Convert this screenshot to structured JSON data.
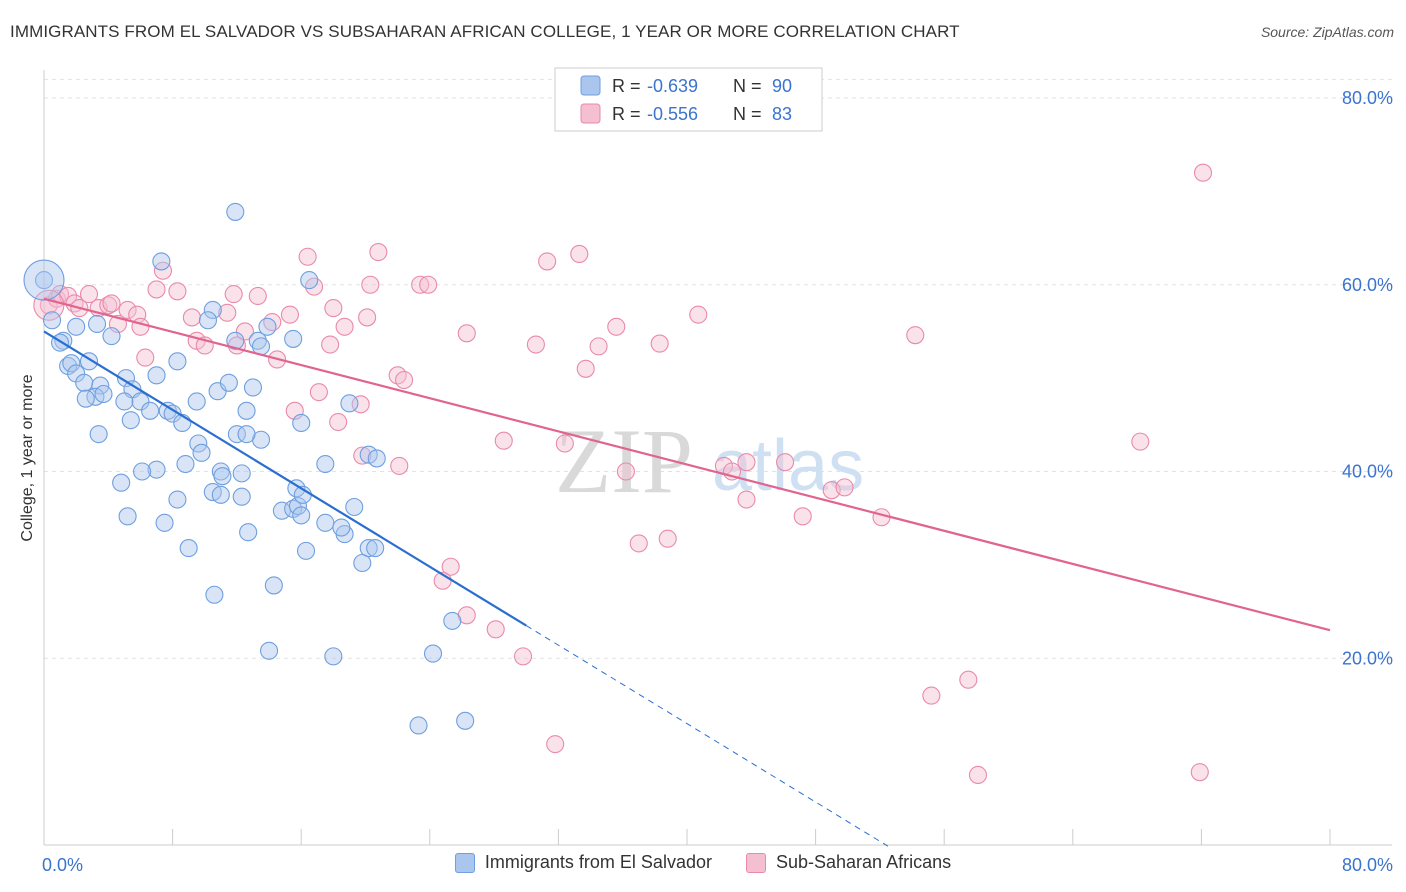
{
  "title": "IMMIGRANTS FROM EL SALVADOR VS SUBSAHARAN AFRICAN COLLEGE, 1 YEAR OR MORE CORRELATION CHART",
  "source": "Source: ZipAtlas.com",
  "watermark": {
    "zip": "ZIP",
    "atlas": "atlas"
  },
  "colors": {
    "blue": "#2a6fcf",
    "blue_fill": "#aac6ee",
    "pink": "#e0648e",
    "pink_fill": "#f5bfd2",
    "value_text": "#3a74cf"
  },
  "stats_legend": [
    {
      "r_label": "R = ",
      "r_value": "-0.639",
      "n_label": "N = ",
      "n_value": "90"
    },
    {
      "r_label": "R = ",
      "r_value": "-0.556",
      "n_label": "N = ",
      "n_value": "83"
    }
  ],
  "chart_data": {
    "type": "scatter",
    "title": "IMMIGRANTS FROM EL SALVADOR VS SUBSAHARAN AFRICAN COLLEGE, 1 YEAR OR MORE CORRELATION CHART",
    "xlabel": "",
    "ylabel": "College, 1 year or more",
    "xlim": [
      0,
      80
    ],
    "ylim": [
      0,
      83
    ],
    "x_tick_labels": [
      {
        "value": 0,
        "label": "0.0%"
      },
      {
        "value": 80,
        "label": "80.0%"
      }
    ],
    "y_tick_labels": [
      {
        "value": 20,
        "label": "20.0%"
      },
      {
        "value": 40,
        "label": "40.0%"
      },
      {
        "value": 60,
        "label": "60.0%"
      },
      {
        "value": 80,
        "label": "80.0%"
      }
    ],
    "grid": true,
    "legend_position": "top-center",
    "series": [
      {
        "name": "Immigrants from El Salvador",
        "color": "#2a6fcf",
        "trend": {
          "x": [
            0,
            30
          ],
          "y": [
            55,
            23.5
          ],
          "dashed_to_x": 52.5
        },
        "points": [
          [
            0.0,
            60.5
          ],
          [
            0.5,
            56.2
          ],
          [
            1.2,
            54.0
          ],
          [
            1.0,
            53.8
          ],
          [
            2.0,
            55.5
          ],
          [
            1.5,
            51.3
          ],
          [
            1.7,
            51.6
          ],
          [
            3.3,
            55.8
          ],
          [
            4.2,
            54.5
          ],
          [
            2.0,
            50.5
          ],
          [
            2.8,
            51.8
          ],
          [
            2.5,
            49.5
          ],
          [
            3.5,
            49.2
          ],
          [
            3.2,
            48.0
          ],
          [
            3.7,
            48.3
          ],
          [
            2.6,
            47.8
          ],
          [
            5.1,
            50.0
          ],
          [
            5.5,
            48.8
          ],
          [
            6.0,
            47.5
          ],
          [
            5.0,
            47.5
          ],
          [
            7.0,
            50.3
          ],
          [
            8.3,
            51.8
          ],
          [
            6.6,
            46.5
          ],
          [
            7.7,
            46.5
          ],
          [
            8.0,
            46.2
          ],
          [
            8.6,
            45.2
          ],
          [
            9.5,
            47.5
          ],
          [
            5.4,
            45.5
          ],
          [
            3.4,
            44.0
          ],
          [
            9.6,
            43.0
          ],
          [
            9.8,
            42.0
          ],
          [
            8.8,
            40.8
          ],
          [
            7.0,
            40.2
          ],
          [
            6.1,
            40.0
          ],
          [
            11.0,
            40.0
          ],
          [
            11.1,
            39.5
          ],
          [
            12.3,
            39.8
          ],
          [
            4.8,
            38.8
          ],
          [
            10.5,
            37.8
          ],
          [
            11.0,
            37.5
          ],
          [
            12.3,
            37.3
          ],
          [
            8.3,
            37.0
          ],
          [
            5.2,
            35.2
          ],
          [
            7.5,
            34.5
          ],
          [
            12.7,
            33.5
          ],
          [
            9.0,
            31.8
          ],
          [
            10.6,
            26.8
          ],
          [
            14.3,
            27.8
          ],
          [
            16.3,
            31.5
          ],
          [
            14.8,
            35.8
          ],
          [
            15.5,
            36.0
          ],
          [
            15.8,
            36.3
          ],
          [
            16.0,
            35.3
          ],
          [
            17.5,
            34.5
          ],
          [
            18.7,
            33.3
          ],
          [
            19.8,
            30.2
          ],
          [
            19.3,
            36.2
          ],
          [
            20.2,
            31.8
          ],
          [
            20.6,
            31.8
          ],
          [
            18.5,
            34.0
          ],
          [
            15.7,
            38.2
          ],
          [
            17.5,
            40.8
          ],
          [
            13.5,
            43.4
          ],
          [
            12.0,
            44.0
          ],
          [
            12.6,
            44.0
          ],
          [
            12.6,
            46.5
          ],
          [
            10.8,
            48.6
          ],
          [
            11.5,
            49.5
          ],
          [
            13.0,
            49.0
          ],
          [
            16.0,
            45.2
          ],
          [
            19.0,
            47.3
          ],
          [
            20.2,
            41.8
          ],
          [
            20.7,
            41.4
          ],
          [
            13.3,
            54.0
          ],
          [
            13.5,
            53.4
          ],
          [
            13.9,
            55.5
          ],
          [
            15.5,
            54.2
          ],
          [
            16.5,
            60.5
          ],
          [
            11.9,
            54.0
          ],
          [
            10.5,
            57.3
          ],
          [
            10.2,
            56.2
          ],
          [
            7.3,
            62.5
          ],
          [
            11.9,
            67.8
          ],
          [
            18.0,
            20.2
          ],
          [
            24.2,
            20.5
          ],
          [
            23.3,
            12.8
          ],
          [
            26.2,
            13.3
          ],
          [
            25.4,
            24.0
          ],
          [
            14.0,
            20.8
          ],
          [
            16.1,
            37.5
          ]
        ]
      },
      {
        "name": "Sub-Saharan Africans",
        "color": "#e0648e",
        "trend": {
          "x": [
            0,
            80
          ],
          "y": [
            58.5,
            23.0
          ]
        },
        "points": [
          [
            0.3,
            57.8
          ],
          [
            0.8,
            58.5
          ],
          [
            1.0,
            59.0
          ],
          [
            1.5,
            58.8
          ],
          [
            1.9,
            58.0
          ],
          [
            2.2,
            57.5
          ],
          [
            2.8,
            59.0
          ],
          [
            3.4,
            57.5
          ],
          [
            4.0,
            57.8
          ],
          [
            4.2,
            58.0
          ],
          [
            5.2,
            57.3
          ],
          [
            5.8,
            56.8
          ],
          [
            6.0,
            55.5
          ],
          [
            4.6,
            55.8
          ],
          [
            6.3,
            52.2
          ],
          [
            7.0,
            59.5
          ],
          [
            7.4,
            61.5
          ],
          [
            8.3,
            59.3
          ],
          [
            9.2,
            56.5
          ],
          [
            9.5,
            54.0
          ],
          [
            10.0,
            53.5
          ],
          [
            11.4,
            57.0
          ],
          [
            11.8,
            59.0
          ],
          [
            12.0,
            53.5
          ],
          [
            12.5,
            55.0
          ],
          [
            13.3,
            58.8
          ],
          [
            14.2,
            56.0
          ],
          [
            14.5,
            52.0
          ],
          [
            15.3,
            56.8
          ],
          [
            16.4,
            63.0
          ],
          [
            16.8,
            59.8
          ],
          [
            17.1,
            48.5
          ],
          [
            15.6,
            46.5
          ],
          [
            17.8,
            53.6
          ],
          [
            18.0,
            57.5
          ],
          [
            18.7,
            55.5
          ],
          [
            19.7,
            47.2
          ],
          [
            20.1,
            56.5
          ],
          [
            20.3,
            60.0
          ],
          [
            20.8,
            63.5
          ],
          [
            22.0,
            50.3
          ],
          [
            22.4,
            49.8
          ],
          [
            23.4,
            60.0
          ],
          [
            23.9,
            60.0
          ],
          [
            26.3,
            54.8
          ],
          [
            28.6,
            43.3
          ],
          [
            30.6,
            53.6
          ],
          [
            31.3,
            62.5
          ],
          [
            32.4,
            43.0
          ],
          [
            33.3,
            63.3
          ],
          [
            33.7,
            51.0
          ],
          [
            34.5,
            53.4
          ],
          [
            35.6,
            55.5
          ],
          [
            36.2,
            40.0
          ],
          [
            38.8,
            32.8
          ],
          [
            37.0,
            32.3
          ],
          [
            38.3,
            53.7
          ],
          [
            40.7,
            56.8
          ],
          [
            42.3,
            40.6
          ],
          [
            42.8,
            40.0
          ],
          [
            43.7,
            37.0
          ],
          [
            43.7,
            41.0
          ],
          [
            46.1,
            41.0
          ],
          [
            47.2,
            35.2
          ],
          [
            49.0,
            38.0
          ],
          [
            49.8,
            38.3
          ],
          [
            52.1,
            35.1
          ],
          [
            54.2,
            54.6
          ],
          [
            55.2,
            16.0
          ],
          [
            57.5,
            17.7
          ],
          [
            58.1,
            7.5
          ],
          [
            68.2,
            43.2
          ],
          [
            71.9,
            7.8
          ],
          [
            72.1,
            72.0
          ],
          [
            19.8,
            41.7
          ],
          [
            25.3,
            29.8
          ],
          [
            24.8,
            28.3
          ],
          [
            26.3,
            24.6
          ],
          [
            28.1,
            23.1
          ],
          [
            29.8,
            20.2
          ],
          [
            31.8,
            10.8
          ],
          [
            18.3,
            45.3
          ],
          [
            22.1,
            40.6
          ]
        ]
      }
    ]
  },
  "legend_bottom": [
    {
      "label": "Immigrants from El Salvador"
    },
    {
      "label": "Sub-Saharan Africans"
    }
  ]
}
